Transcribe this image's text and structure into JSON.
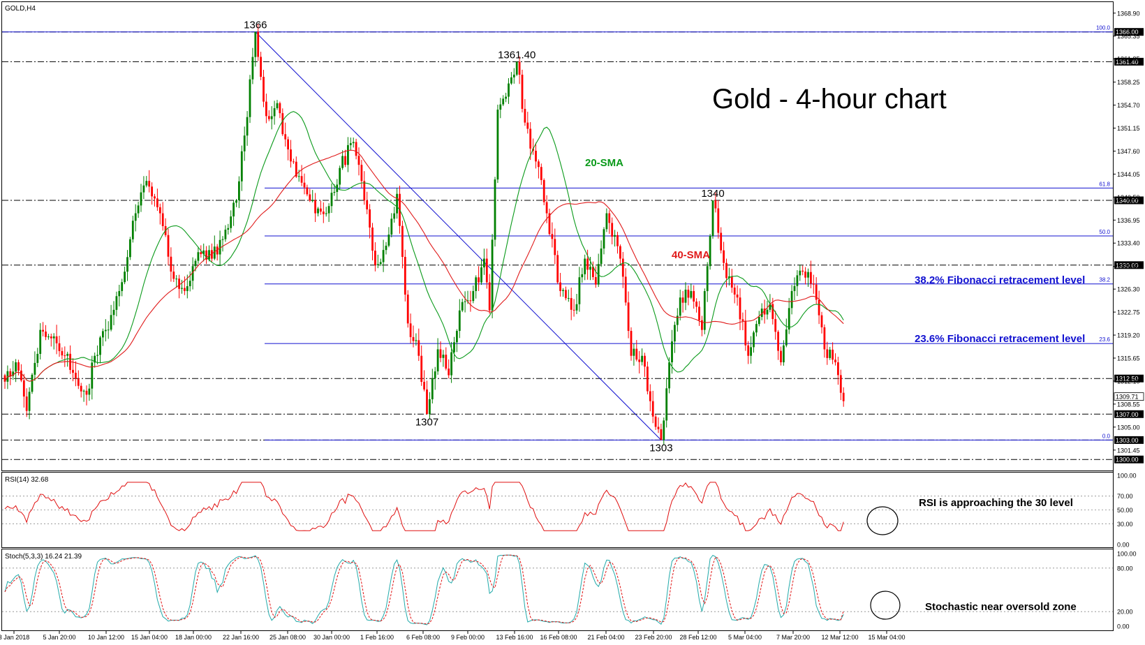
{
  "symbol_label": "GOLD,H4",
  "chart_title": "Gold - 4-hour chart",
  "annotations": {
    "sma20": "20-SMA",
    "sma40": "40-SMA",
    "fib382": "38.2% Fibonacci retracement level",
    "fib236": "23.6% Fibonacci retracement level",
    "rsi_note": "RSI is approaching the 30 level",
    "stoch_note": "Stochastic near oversold zone"
  },
  "colors": {
    "bull": "#008000",
    "bear": "#ff0000",
    "sma20": "#0a9a1a",
    "sma40": "#e01a1a",
    "fib": "#1010d0",
    "rsi": "#e01010",
    "stoch_main": "#22aaaa",
    "stoch_signal": "#e01010"
  },
  "chart_data": [
    {
      "type": "candlestick",
      "title": "Gold - 4-hour chart",
      "ylim": [
        1298.3,
        1370.6
      ],
      "price_axis_ticks": [
        "1368.90",
        "1365.35",
        "1361.85",
        "1358.25",
        "1354.70",
        "1351.15",
        "1347.60",
        "1344.05",
        "1340.50",
        "1336.95",
        "1333.40",
        "1329.80",
        "1326.30",
        "1322.75",
        "1319.20",
        "1315.65",
        "1312.10",
        "1308.55",
        "1305.00",
        "1301.45"
      ],
      "x_tick_labels": [
        "3 Jan 2018",
        "5 Jan 20:00",
        "10 Jan 12:00",
        "15 Jan 04:00",
        "18 Jan 00:00",
        "22 Jan 16:00",
        "25 Jan 08:00",
        "30 Jan 00:00",
        "1 Feb 16:00",
        "6 Feb 08:00",
        "9 Feb 00:00",
        "13 Feb 16:00",
        "16 Feb 08:00",
        "21 Feb 04:00",
        "23 Feb 20:00",
        "28 Feb 12:00",
        "5 Mar 04:00",
        "7 Mar 20:00",
        "12 Mar 12:00",
        "15 Mar 04:00"
      ],
      "horizontal_levels": [
        {
          "value": 1366.0,
          "label": "1366.00"
        },
        {
          "value": 1361.4,
          "label": "1361.40"
        },
        {
          "value": 1340.0,
          "label": "1340.00"
        },
        {
          "value": 1330.0,
          "label": "1330.00"
        },
        {
          "value": 1312.5,
          "label": "1312.50"
        },
        {
          "value": 1307.0,
          "label": "1307.00"
        },
        {
          "value": 1303.0,
          "label": "1303.00"
        },
        {
          "value": 1300.0,
          "label": "1300.00"
        }
      ],
      "current_price": {
        "value": 1309.71,
        "label": "1309.71"
      },
      "fibonacci_levels": [
        {
          "level": "100.0",
          "value": 1366.0
        },
        {
          "level": "61.8",
          "value": 1341.9
        },
        {
          "level": "50.0",
          "value": 1334.5
        },
        {
          "level": "38.2",
          "value": 1327.1
        },
        {
          "level": "23.6",
          "value": 1317.9
        },
        {
          "level": "0.0",
          "value": 1303.0
        }
      ],
      "peak_labels": [
        {
          "label": "1366",
          "value": 1366
        },
        {
          "label": "1361.40",
          "value": 1361.4
        },
        {
          "label": "1340",
          "value": 1340
        },
        {
          "label": "1307",
          "value": 1307
        },
        {
          "label": "1303",
          "value": 1303
        }
      ],
      "trendline": {
        "from": 1366.0,
        "to": 1303.0
      },
      "anchors": [
        [
          0,
          1312
        ],
        [
          4,
          1315
        ],
        [
          8,
          1307.5
        ],
        [
          13,
          1320
        ],
        [
          18,
          1319
        ],
        [
          22,
          1316
        ],
        [
          26,
          1312.5
        ],
        [
          30,
          1310
        ],
        [
          33,
          1316
        ],
        [
          37,
          1320
        ],
        [
          42,
          1326
        ],
        [
          48,
          1338
        ],
        [
          52,
          1343
        ],
        [
          57,
          1338
        ],
        [
          61,
          1329
        ],
        [
          66,
          1326
        ],
        [
          71,
          1332
        ],
        [
          76,
          1331
        ],
        [
          80,
          1334
        ],
        [
          85,
          1340
        ],
        [
          88,
          1350
        ],
        [
          92,
          1366
        ],
        [
          96,
          1353
        ],
        [
          100,
          1355
        ],
        [
          105,
          1346
        ],
        [
          110,
          1342
        ],
        [
          114,
          1338
        ],
        [
          118,
          1338
        ],
        [
          123,
          1345
        ],
        [
          128,
          1349
        ],
        [
          132,
          1340
        ],
        [
          136,
          1330
        ],
        [
          140,
          1333
        ],
        [
          144,
          1341
        ],
        [
          148,
          1321
        ],
        [
          152,
          1316
        ],
        [
          155,
          1307
        ],
        [
          159,
          1317
        ],
        [
          163,
          1313
        ],
        [
          167,
          1323
        ],
        [
          172,
          1326
        ],
        [
          176,
          1331
        ],
        [
          178,
          1323
        ],
        [
          181,
          1354
        ],
        [
          184,
          1356
        ],
        [
          188,
          1361.4
        ],
        [
          191,
          1352
        ],
        [
          195,
          1346
        ],
        [
          199,
          1338
        ],
        [
          204,
          1326
        ],
        [
          209,
          1323
        ],
        [
          213,
          1331
        ],
        [
          217,
          1327
        ],
        [
          221,
          1338
        ],
        [
          226,
          1331
        ],
        [
          230,
          1316
        ],
        [
          234,
          1316
        ],
        [
          237,
          1309
        ],
        [
          241,
          1303
        ],
        [
          244,
          1315
        ],
        [
          248,
          1325
        ],
        [
          252,
          1326
        ],
        [
          256,
          1320
        ],
        [
          260,
          1340
        ],
        [
          265,
          1328
        ],
        [
          269,
          1325
        ],
        [
          273,
          1316
        ],
        [
          277,
          1322
        ],
        [
          281,
          1324
        ],
        [
          285,
          1315
        ],
        [
          289,
          1326
        ],
        [
          293,
          1329
        ],
        [
          297,
          1327
        ],
        [
          301,
          1317
        ],
        [
          305,
          1315
        ],
        [
          308,
          1309
        ]
      ],
      "series": [
        {
          "name": "20-SMA",
          "period": 20
        },
        {
          "name": "40-SMA",
          "period": 40
        }
      ]
    },
    {
      "type": "line",
      "title": "RSI(14) 32.68",
      "ylim": [
        0,
        100
      ],
      "y_ticks": [
        "100.00",
        "70.00",
        "50.00",
        "30.00",
        "0.00"
      ],
      "levels": [
        70,
        50,
        30
      ],
      "last_value": 32.68
    },
    {
      "type": "line",
      "title": "Stoch(5,3,3) 16.24 21.39",
      "ylim": [
        0,
        100
      ],
      "y_ticks": [
        "100.00",
        "80.00",
        "20.00",
        "0.00"
      ],
      "levels": [
        80,
        20
      ],
      "last_values": [
        16.24,
        21.39
      ]
    }
  ]
}
